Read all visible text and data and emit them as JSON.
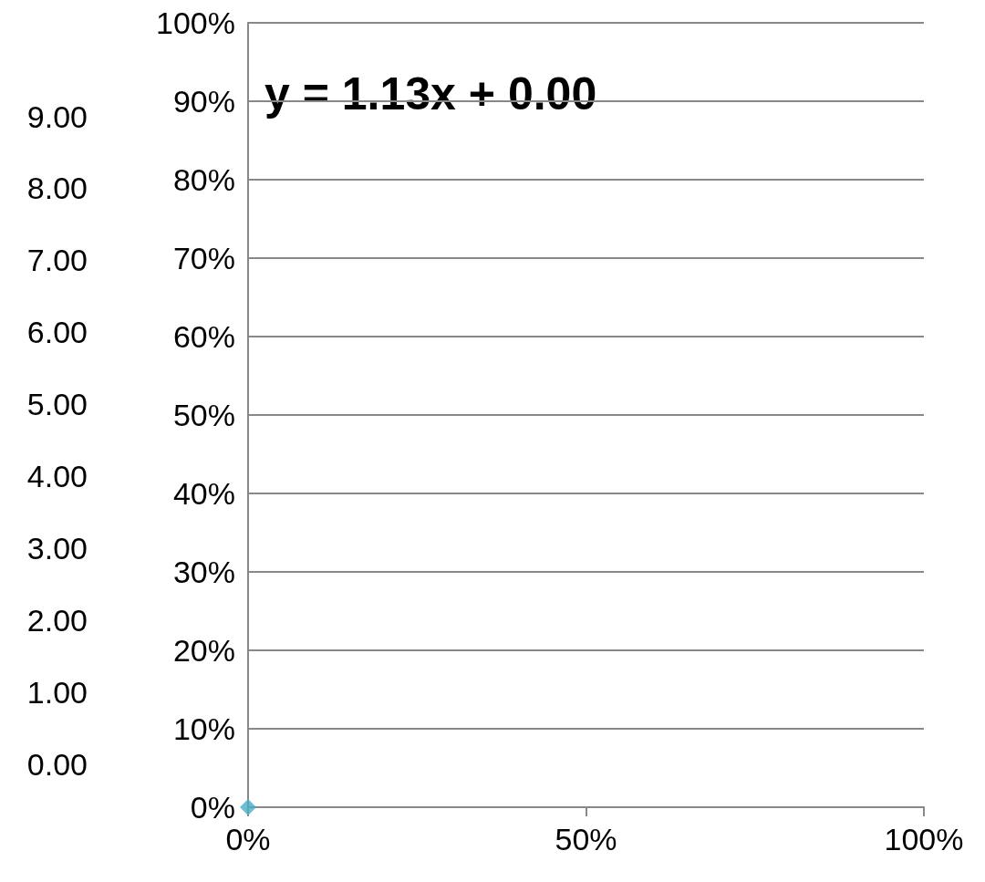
{
  "chart_data": {
    "type": "scatter",
    "x": [
      0
    ],
    "series": [
      {
        "color": "#4bacc6",
        "values": [
          0
        ],
        "marker": "diamond"
      }
    ],
    "xlim": [
      0,
      100
    ],
    "xticks": [
      {
        "value": 0,
        "label": "0%"
      },
      {
        "value": 50,
        "label": "50%"
      },
      {
        "value": 100,
        "label": "100%"
      }
    ],
    "ylim": [
      0,
      100
    ],
    "yticks": [
      {
        "value": 0,
        "label": "0%"
      },
      {
        "value": 10,
        "label": "10%"
      },
      {
        "value": 20,
        "label": "20%"
      },
      {
        "value": 30,
        "label": "30%"
      },
      {
        "value": 40,
        "label": "40%"
      },
      {
        "value": 50,
        "label": "50%"
      },
      {
        "value": 60,
        "label": "60%"
      },
      {
        "value": 70,
        "label": "70%"
      },
      {
        "value": 80,
        "label": "80%"
      },
      {
        "value": 90,
        "label": "90%"
      },
      {
        "value": 100,
        "label": "100%"
      }
    ],
    "y2lim": [
      -0.6,
      10.3
    ],
    "y2ticks": [
      {
        "value": 0,
        "label": "0.00"
      },
      {
        "value": 1,
        "label": "1.00"
      },
      {
        "value": 2,
        "label": "2.00"
      },
      {
        "value": 3,
        "label": "3.00"
      },
      {
        "value": 4,
        "label": "4.00"
      },
      {
        "value": 5,
        "label": "5.00"
      },
      {
        "value": 6,
        "label": "6.00"
      },
      {
        "value": 7,
        "label": "7.00"
      },
      {
        "value": 8,
        "label": "8.00"
      },
      {
        "value": 9,
        "label": "9.00"
      }
    ],
    "annotations": [
      "y = 1.13x + 0.00"
    ],
    "grid": "y"
  }
}
